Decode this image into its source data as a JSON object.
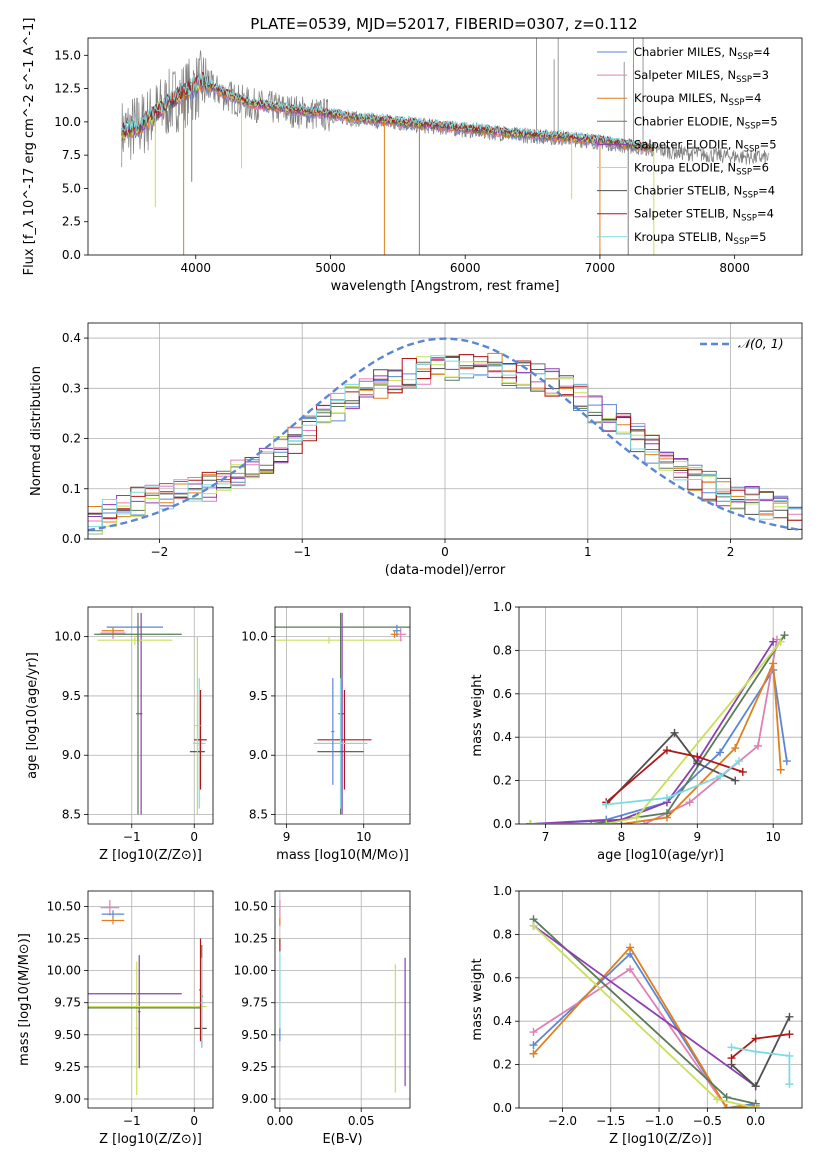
{
  "figure": {
    "title": "PLATE=0539, MJD=52017, FIBERID=0307, z=0.112",
    "models": [
      {
        "name": "Chabrier MILES",
        "nssp": "4",
        "color": "#5b86d4"
      },
      {
        "name": "Salpeter MILES",
        "nssp": "3",
        "color": "#e07fb5"
      },
      {
        "name": "Kroupa MILES",
        "nssp": "4",
        "color": "#e07f1e"
      },
      {
        "name": "Chabrier ELODIE",
        "nssp": "5",
        "color": "#5a7a5a"
      },
      {
        "name": "Salpeter ELODIE",
        "nssp": "5",
        "color": "#8b3fb0"
      },
      {
        "name": "Kroupa ELODIE",
        "nssp": "6",
        "color": "#c8e05a"
      },
      {
        "name": "Chabrier STELIB",
        "nssp": "4",
        "color": "#505050"
      },
      {
        "name": "Salpeter STELIB",
        "nssp": "4",
        "color": "#b01818"
      },
      {
        "name": "Kroupa STELIB",
        "nssp": "5",
        "color": "#7fdbe0"
      }
    ]
  },
  "chart_data": [
    {
      "id": "spectrum",
      "type": "line",
      "title": "PLATE=0539, MJD=52017, FIBERID=0307, z=0.112",
      "xlabel": "wavelength [Angstrom, rest frame]",
      "ylabel": "Flux [f_λ 10^-17 erg cm^-2 s^-1 A^-1]",
      "xlim": [
        3200,
        8500
      ],
      "ylim": [
        0,
        16.3
      ],
      "xticks": [
        "4000",
        "5000",
        "6000",
        "7000",
        "8000"
      ],
      "yticks": [
        "0.0",
        "2.5",
        "5.0",
        "7.5",
        "10.0",
        "12.5",
        "15.0"
      ],
      "observed_color": "#808080",
      "legend": [
        "Chabrier MILES, N_SSP=4",
        "Salpeter MILES, N_SSP=3",
        "Kroupa MILES, N_SSP=4",
        "Chabrier ELODIE, N_SSP=5",
        "Salpeter ELODIE, N_SSP=5",
        "Kroupa ELODIE, N_SSP=6",
        "Chabrier STELIB, N_SSP=4",
        "Salpeter STELIB, N_SSP=4",
        "Kroupa STELIB, N_SSP=5"
      ],
      "model_continuum": {
        "x": [
          3450,
          3600,
          3800,
          3950,
          4050,
          4200,
          4400,
          4600,
          4800,
          5000,
          5200,
          5500,
          5800,
          6100,
          6400,
          6700,
          7000,
          7200,
          7400
        ],
        "y": [
          9.2,
          9.8,
          11.5,
          12.4,
          13.0,
          12.2,
          11.4,
          11.1,
          10.8,
          10.6,
          10.3,
          10.0,
          9.7,
          9.4,
          9.1,
          8.9,
          8.6,
          8.3,
          8.0
        ]
      },
      "observed_continuum": {
        "x": [
          3450,
          3600,
          3800,
          3950,
          4050,
          4200,
          4400,
          4600,
          4800,
          5000,
          5200,
          5500,
          5800,
          6100,
          6400,
          6700,
          7000,
          7200,
          7400,
          7700,
          8000,
          8250
        ],
        "y": [
          9.2,
          9.8,
          11.4,
          12.3,
          12.9,
          12.1,
          11.3,
          11.0,
          10.7,
          10.5,
          10.2,
          9.9,
          9.6,
          9.3,
          9.0,
          8.8,
          8.5,
          8.2,
          7.9,
          7.6,
          7.4,
          7.3
        ]
      },
      "absorption_dips": [
        {
          "x": 3700,
          "y": 3.6
        },
        {
          "x": 3910,
          "y": 0.0
        },
        {
          "x": 3970,
          "y": 5.5
        },
        {
          "x": 4340,
          "y": 6.5
        },
        {
          "x": 5400,
          "y": 0.0
        },
        {
          "x": 5660,
          "y": 0.0
        },
        {
          "x": 6790,
          "y": 4.2
        },
        {
          "x": 7000,
          "y": 0.0
        },
        {
          "x": 7210,
          "y": 0.0
        },
        {
          "x": 7400,
          "y": 0.0
        }
      ],
      "spikes": [
        {
          "x": 6530,
          "y": 16.3
        },
        {
          "x": 6660,
          "y": 14.7
        },
        {
          "x": 6690,
          "y": 16.3
        },
        {
          "x": 7180,
          "y": 14.5
        },
        {
          "x": 7250,
          "y": 16.3
        },
        {
          "x": 7320,
          "y": 16.3
        }
      ]
    },
    {
      "id": "residuals",
      "type": "line",
      "xlabel": "(data-model)/error",
      "ylabel": "Normed distribution",
      "xlim": [
        -2.5,
        2.5
      ],
      "ylim": [
        0,
        0.43
      ],
      "xticks": [
        "−2",
        "−1",
        "0",
        "1",
        "2"
      ],
      "yticks": [
        "0.0",
        "0.1",
        "0.2",
        "0.3",
        "0.4"
      ],
      "legend": "𝒩(0, 1)",
      "normal_color": "#5b86d4",
      "bin_width": 0.1,
      "bins_start": -2.5,
      "base_profile": [
        0.04,
        0.055,
        0.065,
        0.075,
        0.08,
        0.085,
        0.09,
        0.1,
        0.105,
        0.115,
        0.13,
        0.145,
        0.16,
        0.18,
        0.2,
        0.22,
        0.24,
        0.26,
        0.28,
        0.3,
        0.31,
        0.32,
        0.33,
        0.335,
        0.34,
        0.345,
        0.35,
        0.345,
        0.34,
        0.335,
        0.33,
        0.32,
        0.31,
        0.3,
        0.28,
        0.26,
        0.24,
        0.22,
        0.2,
        0.18,
        0.16,
        0.14,
        0.12,
        0.105,
        0.095,
        0.085,
        0.075,
        0.065,
        0.055,
        0.045
      ]
    },
    {
      "id": "age-vs-Z",
      "type": "scatter",
      "xlabel": "Z [log10(Z/Z⊙)]",
      "ylabel": "age [log10(age/yr)]",
      "xlim": [
        -1.7,
        0.3
      ],
      "ylim": [
        8.42,
        10.25
      ],
      "xticks": [
        "−1",
        "0"
      ],
      "yticks": [
        "8.5",
        "9.0",
        "9.5",
        "10.0"
      ],
      "points": [
        {
          "x": -0.95,
          "y": 10.08,
          "xerr": 0.45,
          "yerr": 0.0,
          "series": 0
        },
        {
          "x": -1.3,
          "y": 10.03,
          "xerr": 0.2,
          "yerr": 0.05,
          "series": 1
        },
        {
          "x": -1.3,
          "y": 10.05,
          "xerr": 0.18,
          "yerr": 0.03,
          "series": 2
        },
        {
          "x": -0.9,
          "y": 10.02,
          "xerr": 0.7,
          "yerr": 0.06,
          "series": 3
        },
        {
          "x": -0.85,
          "y": 9.35,
          "xerr": 0.02,
          "yerr": 0.85,
          "series": 4
        },
        {
          "x": -0.95,
          "y": 9.97,
          "xerr": 0.6,
          "yerr": 0.04,
          "series": 5
        },
        {
          "x": -0.9,
          "y": 9.35,
          "xerr": 0.03,
          "yerr": 0.85,
          "series": 3
        },
        {
          "x": 0.08,
          "y": 9.1,
          "xerr": 0.1,
          "yerr": 0.55,
          "series": 8
        },
        {
          "x": 0.1,
          "y": 9.13,
          "xerr": 0.1,
          "yerr": 0.42,
          "series": 7
        },
        {
          "x": 0.05,
          "y": 9.03,
          "xerr": 0.12,
          "yerr": 0.0,
          "series": 6
        },
        {
          "x": 0.05,
          "y": 9.25,
          "xerr": 0.05,
          "yerr": 0.75,
          "series": 5
        }
      ]
    },
    {
      "id": "age-vs-mass",
      "type": "scatter",
      "xlabel": "mass [log10(M/M⊙)]",
      "ylabel": "",
      "xlim": [
        8.85,
        10.6
      ],
      "ylim": [
        8.42,
        10.25
      ],
      "xticks": [
        "9",
        "10"
      ],
      "yticks": [
        "8.5",
        "9.0",
        "9.5",
        "10.0"
      ],
      "points": [
        {
          "x": 9.6,
          "y": 10.08,
          "xerr": 1.0,
          "yerr": 0.0,
          "series": 3
        },
        {
          "x": 9.55,
          "y": 9.97,
          "xerr": 0.95,
          "yerr": 0.03,
          "series": 5
        },
        {
          "x": 10.48,
          "y": 10.02,
          "xerr": 0.07,
          "yerr": 0.06,
          "series": 1
        },
        {
          "x": 10.43,
          "y": 10.05,
          "xerr": 0.05,
          "yerr": 0.05,
          "series": 0
        },
        {
          "x": 10.4,
          "y": 10.02,
          "xerr": 0.05,
          "yerr": 0.03,
          "series": 2
        },
        {
          "x": 9.72,
          "y": 9.35,
          "xerr": 0.03,
          "yerr": 0.85,
          "series": 4
        },
        {
          "x": 9.7,
          "y": 9.35,
          "xerr": 0.03,
          "yerr": 0.85,
          "series": 3
        },
        {
          "x": 9.75,
          "y": 9.13,
          "xerr": 0.35,
          "yerr": 0.42,
          "series": 7
        },
        {
          "x": 9.7,
          "y": 9.1,
          "xerr": 0.35,
          "yerr": 0.55,
          "series": 8
        },
        {
          "x": 9.7,
          "y": 9.03,
          "xerr": 0.3,
          "yerr": 0.0,
          "series": 6
        },
        {
          "x": 9.6,
          "y": 9.2,
          "xerr": 0.02,
          "yerr": 0.45,
          "series": 0
        }
      ]
    },
    {
      "id": "mass-weight-vs-age",
      "type": "line",
      "xlabel": "age [log10(age/yr)]",
      "ylabel": "mass weight",
      "xlim": [
        6.65,
        10.38
      ],
      "ylim": [
        0,
        1.0
      ],
      "xticks": [
        "7",
        "8",
        "9",
        "10"
      ],
      "yticks": [
        "0.0",
        "0.2",
        "0.4",
        "0.6",
        "0.8",
        "1.0"
      ],
      "series": [
        {
          "x": [
            6.8,
            7.8,
            8.6,
            9.3,
            10.0,
            10.18
          ],
          "y": [
            0.0,
            0.02,
            0.1,
            0.33,
            0.71,
            0.29
          ],
          "series": 0
        },
        {
          "x": [
            8.3,
            8.9,
            9.8,
            10.05
          ],
          "y": [
            0.0,
            0.1,
            0.36,
            0.85
          ],
          "series": 1
        },
        {
          "x": [
            6.8,
            8.0,
            8.6,
            9.5,
            10.0,
            10.1
          ],
          "y": [
            0.0,
            0.0,
            0.03,
            0.35,
            0.74,
            0.25
          ],
          "series": 2
        },
        {
          "x": [
            6.8,
            7.6,
            8.6,
            10.15
          ],
          "y": [
            0.0,
            0.0,
            0.05,
            0.87
          ],
          "series": 3
        },
        {
          "x": [
            6.8,
            8.0,
            8.6,
            9.0,
            10.0
          ],
          "y": [
            0.0,
            0.02,
            0.1,
            0.29,
            0.84
          ],
          "series": 4
        },
        {
          "x": [
            6.8,
            7.8,
            8.2,
            10.1
          ],
          "y": [
            0.0,
            0.0,
            0.03,
            0.84
          ],
          "series": 5
        },
        {
          "x": [
            7.8,
            8.7,
            9.0,
            9.5
          ],
          "y": [
            0.09,
            0.42,
            0.28,
            0.2
          ],
          "series": 6
        },
        {
          "x": [
            7.8,
            8.6,
            9.0,
            9.6
          ],
          "y": [
            0.1,
            0.34,
            0.31,
            0.24
          ],
          "series": 7
        },
        {
          "x": [
            7.8,
            8.6,
            9.3,
            9.55
          ],
          "y": [
            0.09,
            0.12,
            0.22,
            0.29
          ],
          "series": 8
        }
      ]
    },
    {
      "id": "mass-vs-Z",
      "type": "scatter",
      "xlabel": "Z [log10(Z/Z⊙)]",
      "ylabel": "mass [log10(M/M⊙)]",
      "xlim": [
        -1.7,
        0.3
      ],
      "ylim": [
        8.93,
        10.62
      ],
      "xticks": [
        "−1",
        "0"
      ],
      "yticks": [
        "9.00",
        "9.25",
        "9.50",
        "9.75",
        "10.00",
        "10.25",
        "10.50"
      ],
      "points": [
        {
          "x": -1.35,
          "y": 10.49,
          "xerr": 0.15,
          "yerr": 0.06,
          "series": 1
        },
        {
          "x": -1.3,
          "y": 10.44,
          "xerr": 0.18,
          "yerr": 0.03,
          "series": 0
        },
        {
          "x": -1.3,
          "y": 10.39,
          "xerr": 0.18,
          "yerr": 0.03,
          "series": 2
        },
        {
          "x": -0.95,
          "y": 9.82,
          "xerr": 0.75,
          "yerr": 0.0,
          "series": 4
        },
        {
          "x": -0.88,
          "y": 9.68,
          "xerr": 0.02,
          "yerr": 0.44,
          "series": 4
        },
        {
          "x": -0.92,
          "y": 9.55,
          "xerr": 0.02,
          "yerr": 0.52,
          "series": 5
        },
        {
          "x": -0.75,
          "y": 9.72,
          "xerr": 0.95,
          "yerr": 0.0,
          "series": 5
        },
        {
          "x": -0.8,
          "y": 9.71,
          "xerr": 0.9,
          "yerr": 0.0,
          "series": 3
        },
        {
          "x": 0.1,
          "y": 9.55,
          "xerr": 0.1,
          "yerr": 0.0,
          "series": 6
        },
        {
          "x": 0.1,
          "y": 9.85,
          "xerr": 0.02,
          "yerr": 0.4,
          "series": 7
        },
        {
          "x": 0.12,
          "y": 9.8,
          "xerr": 0.02,
          "yerr": 0.4,
          "series": 3
        },
        {
          "x": 0.12,
          "y": 9.75,
          "xerr": 0.02,
          "yerr": 0.35,
          "series": 8
        }
      ]
    },
    {
      "id": "mass-vs-EBV",
      "type": "scatter",
      "xlabel": "E(B-V)",
      "ylabel": "",
      "xlim": [
        -0.003,
        0.08
      ],
      "ylim": [
        8.93,
        10.62
      ],
      "xticks": [
        "0.00",
        "0.05"
      ],
      "yticks": [
        "9.00",
        "9.25",
        "9.50",
        "9.75",
        "10.00",
        "10.25",
        "10.50"
      ],
      "points": [
        {
          "x": 0.0,
          "y": 10.45,
          "xerr": 0.0,
          "yerr": 0.1,
          "series": 1
        },
        {
          "x": 0.0,
          "y": 10.38,
          "xerr": 0.0,
          "yerr": 0.03,
          "series": 2
        },
        {
          "x": 0.0,
          "y": 10.2,
          "xerr": 0.0,
          "yerr": 0.05,
          "series": 7
        },
        {
          "x": 0.0,
          "y": 9.8,
          "xerr": 0.0,
          "yerr": 0.35,
          "series": 8
        },
        {
          "x": 0.0,
          "y": 9.5,
          "xerr": 0.0,
          "yerr": 0.05,
          "series": 0
        },
        {
          "x": 0.071,
          "y": 9.55,
          "xerr": 0.0,
          "yerr": 0.5,
          "series": 5
        },
        {
          "x": 0.077,
          "y": 9.6,
          "xerr": 0.0,
          "yerr": 0.5,
          "series": 4
        }
      ]
    },
    {
      "id": "mass-weight-vs-Z",
      "type": "line",
      "xlabel": "Z [log10(Z/Z⊙)]",
      "ylabel": "mass weight",
      "xlim": [
        -2.45,
        0.48
      ],
      "ylim": [
        0,
        1.0
      ],
      "xticks": [
        "−2.0",
        "−1.5",
        "−1.0",
        "−0.5",
        "0.0"
      ],
      "yticks": [
        "0.0",
        "0.2",
        "0.4",
        "0.6",
        "0.8",
        "1.0"
      ],
      "series": [
        {
          "x": [
            -2.3,
            -1.3,
            -0.3,
            0.0
          ],
          "y": [
            0.29,
            0.71,
            0.0,
            0.02
          ],
          "series": 0
        },
        {
          "x": [
            -2.3,
            -1.3,
            -0.3,
            0.0
          ],
          "y": [
            0.35,
            0.64,
            0.0,
            0.0
          ],
          "series": 1
        },
        {
          "x": [
            -2.3,
            -1.3,
            -0.3,
            0.0
          ],
          "y": [
            0.25,
            0.74,
            0.0,
            0.01
          ],
          "series": 2
        },
        {
          "x": [
            -2.3,
            -0.3,
            0.0
          ],
          "y": [
            0.87,
            0.05,
            0.02
          ],
          "series": 3
        },
        {
          "x": [
            -2.3,
            0.0
          ],
          "y": [
            0.84,
            0.1
          ],
          "series": 4
        },
        {
          "x": [
            -2.3,
            -0.4,
            0.0
          ],
          "y": [
            0.84,
            0.04,
            0.0
          ],
          "series": 5
        },
        {
          "x": [
            -0.25,
            0.0,
            0.35
          ],
          "y": [
            0.2,
            0.1,
            0.42
          ],
          "series": 6
        },
        {
          "x": [
            -0.25,
            0.0,
            0.35
          ],
          "y": [
            0.23,
            0.32,
            0.34
          ],
          "series": 7
        },
        {
          "x": [
            -0.25,
            0.0,
            0.35,
            0.35
          ],
          "y": [
            0.28,
            0.26,
            0.24,
            0.11
          ],
          "series": 8
        }
      ]
    }
  ]
}
